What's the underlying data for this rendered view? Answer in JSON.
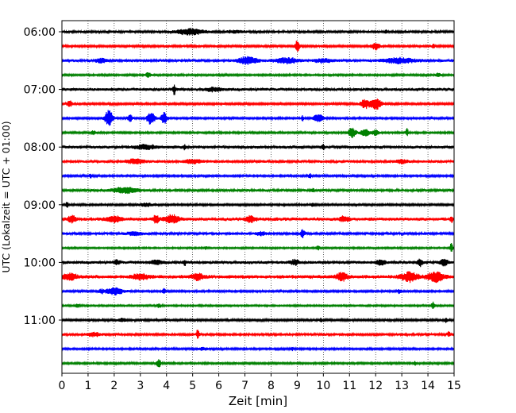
{
  "chart_data": {
    "type": "line",
    "subtype": "helicorder",
    "xlabel": "Zeit  [min]",
    "ylabel": "UTC (Lokalzeit = UTC + 01:00)",
    "xlim": [
      0,
      15
    ],
    "x_ticks": [
      0,
      1,
      2,
      3,
      4,
      5,
      6,
      7,
      8,
      9,
      10,
      11,
      12,
      13,
      14,
      15
    ],
    "y_tick_labels": [
      "06:00",
      "07:00",
      "08:00",
      "09:00",
      "10:00",
      "11:00"
    ],
    "y_tick_rows": [
      0,
      4,
      8,
      12,
      16,
      20
    ],
    "grid": "vertical-dotted",
    "row_minutes": 15,
    "row_colors": [
      "#000000",
      "#ff0000",
      "#0000ff",
      "#008000"
    ],
    "rows": [
      {
        "start": "06:00",
        "noise": 0.18,
        "events": [
          {
            "t": 4.9,
            "a": 0.45,
            "d": 0.5
          },
          {
            "t": 6.6,
            "a": 0.2,
            "d": 0.3
          },
          {
            "t": 12.4,
            "a": 0.3,
            "d": 0.05
          }
        ]
      },
      {
        "start": "06:15",
        "noise": 0.16,
        "events": [
          {
            "t": 9.0,
            "a": 0.9,
            "d": 0.08
          },
          {
            "t": 12.0,
            "a": 0.55,
            "d": 0.15
          },
          {
            "t": 14.2,
            "a": 0.4,
            "d": 0.05
          }
        ]
      },
      {
        "start": "06:30",
        "noise": 0.2,
        "events": [
          {
            "t": 1.5,
            "a": 0.35,
            "d": 0.2
          },
          {
            "t": 7.1,
            "a": 0.6,
            "d": 0.35
          },
          {
            "t": 8.6,
            "a": 0.45,
            "d": 0.4
          },
          {
            "t": 10.0,
            "a": 0.3,
            "d": 0.3
          },
          {
            "t": 12.9,
            "a": 0.4,
            "d": 0.6
          }
        ]
      },
      {
        "start": "06:45",
        "noise": 0.14,
        "events": [
          {
            "t": 3.3,
            "a": 0.4,
            "d": 0.1
          },
          {
            "t": 14.4,
            "a": 0.35,
            "d": 0.1
          }
        ]
      },
      {
        "start": "07:00",
        "noise": 0.22,
        "events": [
          {
            "t": 4.3,
            "a": 0.85,
            "d": 0.05
          },
          {
            "t": 5.8,
            "a": 0.25,
            "d": 0.3
          }
        ]
      },
      {
        "start": "07:15",
        "noise": 0.16,
        "events": [
          {
            "t": 0.3,
            "a": 0.45,
            "d": 0.1
          },
          {
            "t": 11.6,
            "a": 0.8,
            "d": 0.15
          },
          {
            "t": 12.0,
            "a": 0.95,
            "d": 0.2
          }
        ]
      },
      {
        "start": "07:30",
        "noise": 0.14,
        "events": [
          {
            "t": 1.8,
            "a": 1.4,
            "d": 0.15
          },
          {
            "t": 2.6,
            "a": 0.7,
            "d": 0.08
          },
          {
            "t": 3.4,
            "a": 1.0,
            "d": 0.15
          },
          {
            "t": 3.9,
            "a": 1.1,
            "d": 0.1
          },
          {
            "t": 9.2,
            "a": 0.45,
            "d": 0.05
          },
          {
            "t": 9.8,
            "a": 0.6,
            "d": 0.2
          }
        ]
      },
      {
        "start": "07:45",
        "noise": 0.14,
        "events": [
          {
            "t": 1.2,
            "a": 0.3,
            "d": 0.08
          },
          {
            "t": 11.1,
            "a": 0.75,
            "d": 0.15
          },
          {
            "t": 11.6,
            "a": 0.6,
            "d": 0.15
          },
          {
            "t": 12.0,
            "a": 0.5,
            "d": 0.12
          },
          {
            "t": 13.2,
            "a": 0.65,
            "d": 0.05
          }
        ]
      },
      {
        "start": "08:00",
        "noise": 0.22,
        "events": [
          {
            "t": 3.2,
            "a": 0.3,
            "d": 0.4
          },
          {
            "t": 4.7,
            "a": 0.35,
            "d": 0.05
          },
          {
            "t": 10.0,
            "a": 0.35,
            "d": 0.05
          }
        ]
      },
      {
        "start": "08:15",
        "noise": 0.2,
        "events": [
          {
            "t": 2.8,
            "a": 0.4,
            "d": 0.3
          },
          {
            "t": 5.0,
            "a": 0.3,
            "d": 0.3
          },
          {
            "t": 13.0,
            "a": 0.3,
            "d": 0.2
          }
        ]
      },
      {
        "start": "08:30",
        "noise": 0.14,
        "events": [
          {
            "t": 1.1,
            "a": 0.35,
            "d": 0.05
          },
          {
            "t": 9.5,
            "a": 0.5,
            "d": 0.05
          }
        ]
      },
      {
        "start": "08:45",
        "noise": 0.18,
        "events": [
          {
            "t": 2.4,
            "a": 0.45,
            "d": 0.5
          },
          {
            "t": 9.6,
            "a": 0.3,
            "d": 0.05
          }
        ]
      },
      {
        "start": "09:00",
        "noise": 0.14,
        "events": [
          {
            "t": 0.2,
            "a": 0.55,
            "d": 0.05
          },
          {
            "t": 3.2,
            "a": 0.25,
            "d": 0.3
          },
          {
            "t": 9.6,
            "a": 0.35,
            "d": 0.05
          }
        ]
      },
      {
        "start": "09:15",
        "noise": 0.24,
        "events": [
          {
            "t": 0.4,
            "a": 0.5,
            "d": 0.15
          },
          {
            "t": 2.0,
            "a": 0.45,
            "d": 0.3
          },
          {
            "t": 3.6,
            "a": 0.7,
            "d": 0.1
          },
          {
            "t": 4.2,
            "a": 0.65,
            "d": 0.25
          },
          {
            "t": 7.2,
            "a": 0.45,
            "d": 0.2
          },
          {
            "t": 10.8,
            "a": 0.35,
            "d": 0.2
          },
          {
            "t": 14.9,
            "a": 0.45,
            "d": 0.05
          }
        ]
      },
      {
        "start": "09:30",
        "noise": 0.18,
        "events": [
          {
            "t": 2.8,
            "a": 0.3,
            "d": 0.3
          },
          {
            "t": 7.6,
            "a": 0.3,
            "d": 0.2
          },
          {
            "t": 9.2,
            "a": 0.65,
            "d": 0.08
          }
        ]
      },
      {
        "start": "09:45",
        "noise": 0.12,
        "events": [
          {
            "t": 5.5,
            "a": 0.3,
            "d": 0.05
          },
          {
            "t": 9.8,
            "a": 0.35,
            "d": 0.05
          },
          {
            "t": 14.9,
            "a": 0.9,
            "d": 0.05
          }
        ]
      },
      {
        "start": "10:00",
        "noise": 0.22,
        "events": [
          {
            "t": 2.1,
            "a": 0.35,
            "d": 0.1
          },
          {
            "t": 3.6,
            "a": 0.35,
            "d": 0.2
          },
          {
            "t": 4.7,
            "a": 0.45,
            "d": 0.05
          },
          {
            "t": 8.9,
            "a": 0.4,
            "d": 0.15
          },
          {
            "t": 12.2,
            "a": 0.45,
            "d": 0.15
          },
          {
            "t": 13.7,
            "a": 0.55,
            "d": 0.1
          },
          {
            "t": 14.6,
            "a": 0.5,
            "d": 0.15
          }
        ]
      },
      {
        "start": "10:15",
        "noise": 0.26,
        "events": [
          {
            "t": 0.3,
            "a": 0.5,
            "d": 0.25
          },
          {
            "t": 3.0,
            "a": 0.45,
            "d": 0.3
          },
          {
            "t": 5.2,
            "a": 0.5,
            "d": 0.2
          },
          {
            "t": 10.7,
            "a": 0.65,
            "d": 0.2
          },
          {
            "t": 13.3,
            "a": 0.75,
            "d": 0.3
          },
          {
            "t": 14.3,
            "a": 0.8,
            "d": 0.3
          }
        ]
      },
      {
        "start": "10:30",
        "noise": 0.14,
        "events": [
          {
            "t": 1.5,
            "a": 0.3,
            "d": 0.1
          },
          {
            "t": 2.0,
            "a": 0.55,
            "d": 0.35
          },
          {
            "t": 3.9,
            "a": 0.4,
            "d": 0.08
          },
          {
            "t": 12.9,
            "a": 0.3,
            "d": 0.1
          }
        ]
      },
      {
        "start": "10:45",
        "noise": 0.12,
        "events": [
          {
            "t": 0.6,
            "a": 0.3,
            "d": 0.1
          },
          {
            "t": 3.7,
            "a": 0.35,
            "d": 0.1
          },
          {
            "t": 14.2,
            "a": 0.55,
            "d": 0.08
          }
        ]
      },
      {
        "start": "11:00",
        "noise": 0.16,
        "events": [
          {
            "t": 2.3,
            "a": 0.3,
            "d": 0.15
          },
          {
            "t": 9.9,
            "a": 0.35,
            "d": 0.05
          },
          {
            "t": 14.7,
            "a": 0.35,
            "d": 0.05
          }
        ]
      },
      {
        "start": "11:15",
        "noise": 0.18,
        "events": [
          {
            "t": 1.2,
            "a": 0.3,
            "d": 0.3
          },
          {
            "t": 5.2,
            "a": 0.85,
            "d": 0.05
          },
          {
            "t": 14.8,
            "a": 0.4,
            "d": 0.05
          }
        ]
      },
      {
        "start": "11:30",
        "noise": 0.14,
        "events": [
          {
            "t": 8.8,
            "a": 0.3,
            "d": 0.05
          },
          {
            "t": 5.4,
            "a": 0.2,
            "d": 0.2
          }
        ]
      },
      {
        "start": "11:45",
        "noise": 0.14,
        "events": [
          {
            "t": 3.7,
            "a": 0.7,
            "d": 0.08
          },
          {
            "t": 13.5,
            "a": 0.35,
            "d": 0.05
          }
        ]
      }
    ]
  }
}
